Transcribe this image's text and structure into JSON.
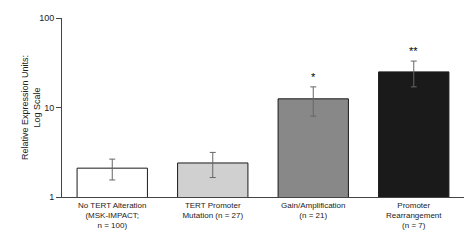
{
  "chart_data": {
    "type": "bar",
    "categories": [
      "No TERT Alteration\n(MSK-IMPACT;\nn = 100)",
      "TERT Promoter\nMutation (n = 27)",
      "Gain/Amplification\n(n = 21)",
      "Promoter\nRearrangement\n(n = 7)"
    ],
    "values": [
      2.1,
      2.4,
      12.5,
      25.0
    ],
    "errors": [
      0.55,
      0.75,
      4.5,
      8.0
    ],
    "colors": [
      "#ffffff",
      "#d0d0d0",
      "#888888",
      "#1a1a1a"
    ],
    "ylabel": "Relative Expression Units:\nLog Scale",
    "log": "y",
    "ylim": [
      1,
      100
    ],
    "yticks": [
      1,
      10,
      100
    ],
    "grid": false,
    "annotations": [
      {
        "category": "Gain/Amplification\n(n = 21)",
        "text": "*"
      },
      {
        "category": "Promoter\nRearrangement\n(n = 7)",
        "text": "**"
      }
    ]
  }
}
